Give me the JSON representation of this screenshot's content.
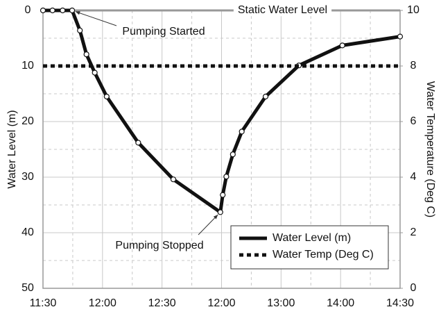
{
  "chart_data": {
    "type": "line",
    "y_label": "Water Level (m)",
    "y2_label": "Water Temperature (Deg C)",
    "xlim": [
      0,
      6
    ],
    "xticks": [
      {
        "value": 0,
        "label": "11:30"
      },
      {
        "value": 1,
        "label": "12:00"
      },
      {
        "value": 2,
        "label": "12:30"
      },
      {
        "value": 3,
        "label": "12:00"
      },
      {
        "value": 4,
        "label": "13:00"
      },
      {
        "value": 5,
        "label": "14:00"
      },
      {
        "value": 6,
        "label": "14:30"
      }
    ],
    "ylim": [
      0,
      50
    ],
    "y_inverted": true,
    "yticks": [
      0,
      10,
      20,
      30,
      40,
      50
    ],
    "y2lim": [
      0,
      10
    ],
    "y2ticks": [
      0,
      2,
      4,
      6,
      8,
      10
    ],
    "grid": true,
    "minor_grid": true,
    "legend": "bottom-right",
    "series": [
      {
        "name": "Water Level (m)",
        "color": "#111111",
        "style": "solid",
        "x": [
          0,
          0.16,
          0.33,
          0.49,
          0.62,
          0.73,
          0.87,
          1.07,
          1.6,
          2.19,
          2.98,
          3.02,
          3.08,
          3.19,
          3.34,
          3.74,
          4.3,
          5.03,
          6
        ],
        "values": [
          0,
          0,
          0,
          0,
          3.6,
          7.9,
          11.2,
          15.5,
          23.8,
          30.4,
          36.3,
          33.2,
          29.9,
          25.9,
          21.8,
          15.5,
          9.9,
          6.3,
          4.7
        ]
      },
      {
        "name": "Water Temp (Deg C)",
        "color": "#111111",
        "style": "dotted",
        "axis": "y2",
        "x": [
          0,
          6
        ],
        "values": [
          8,
          8
        ]
      }
    ],
    "reference_lines": [
      {
        "y": 0,
        "label": "Static Water Level",
        "color": "#999999"
      }
    ],
    "annotations": [
      {
        "text": "Pumping Started",
        "x": 0.49,
        "y": 0
      },
      {
        "text": "Pumping Stopped",
        "x": 2.98,
        "y": 36.3
      }
    ]
  }
}
